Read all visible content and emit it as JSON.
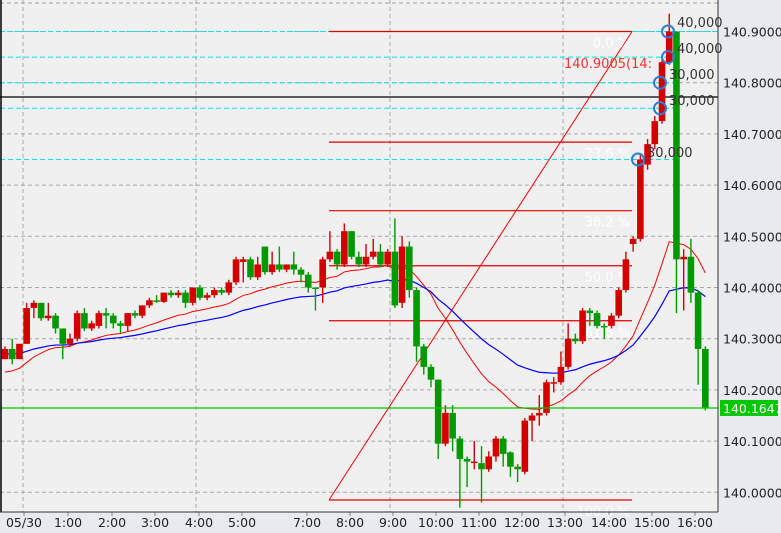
{
  "chart_data": {
    "type": "candlestick",
    "price_axis": {
      "ticks": [
        "140.0000",
        "140.1000",
        "140.2000",
        "140.3000",
        "140.4000",
        "140.5000",
        "140.6000",
        "140.7000",
        "140.8000",
        "140.9000"
      ],
      "ylim": [
        139.955,
        140.96
      ]
    },
    "time_axis": {
      "ticks": [
        "05/30",
        "1:00",
        "2:00",
        "3:00",
        "4:00",
        "5:00",
        "7:00",
        "8:00",
        "9:00",
        "10:00",
        "11:00",
        "12:00",
        "13:00",
        "14:00",
        "15:00",
        "16:00"
      ]
    },
    "colors": {
      "up": "#d40000",
      "down": "#009a00",
      "background": "#f0f0f0",
      "axis_background": "#e8eaf0",
      "ma_fast": "#ff0000",
      "ma_slow": "#0000ff",
      "order_line": "#00e5ee",
      "current_price": "#00c800"
    },
    "candles": [
      [
        140.26,
        140.285,
        140.26,
        140.28
      ],
      [
        140.28,
        140.3,
        140.25,
        140.26
      ],
      [
        140.26,
        140.29,
        140.26,
        140.29
      ],
      [
        140.29,
        140.37,
        140.29,
        140.36
      ],
      [
        140.36,
        140.375,
        140.34,
        140.37
      ],
      [
        140.37,
        140.37,
        140.335,
        140.34
      ],
      [
        140.34,
        140.37,
        140.335,
        140.345
      ],
      [
        140.345,
        140.35,
        140.31,
        140.32
      ],
      [
        140.32,
        140.32,
        140.26,
        140.29
      ],
      [
        140.29,
        140.31,
        140.285,
        140.3
      ],
      [
        140.3,
        140.355,
        140.295,
        140.35
      ],
      [
        140.35,
        140.36,
        140.315,
        140.32
      ],
      [
        140.32,
        140.335,
        140.315,
        140.33
      ],
      [
        140.325,
        140.355,
        140.32,
        140.35
      ],
      [
        140.35,
        140.36,
        140.32,
        140.345
      ],
      [
        140.345,
        140.35,
        140.32,
        140.33
      ],
      [
        140.33,
        140.335,
        140.31,
        140.325
      ],
      [
        140.325,
        140.35,
        140.315,
        140.35
      ],
      [
        140.35,
        140.355,
        140.34,
        140.345
      ],
      [
        140.345,
        140.365,
        140.34,
        140.365
      ],
      [
        140.365,
        140.38,
        140.36,
        140.375
      ],
      [
        140.375,
        140.385,
        140.37,
        140.372
      ],
      [
        140.372,
        140.39,
        140.37,
        140.39
      ],
      [
        140.39,
        140.395,
        140.38,
        140.385
      ],
      [
        140.385,
        140.395,
        140.38,
        140.39
      ],
      [
        140.39,
        140.395,
        140.36,
        140.37
      ],
      [
        140.37,
        140.4,
        140.365,
        140.4
      ],
      [
        140.4,
        140.405,
        140.375,
        140.38
      ],
      [
        140.38,
        140.39,
        140.375,
        140.385
      ],
      [
        140.385,
        140.4,
        140.38,
        140.395
      ],
      [
        140.395,
        140.4,
        140.385,
        140.39
      ],
      [
        140.39,
        140.415,
        140.385,
        140.41
      ],
      [
        140.41,
        140.46,
        140.405,
        140.455
      ],
      [
        140.45,
        140.46,
        140.41,
        140.455
      ],
      [
        140.455,
        140.46,
        140.415,
        140.42
      ],
      [
        140.42,
        140.46,
        140.415,
        140.445
      ],
      [
        140.48,
        140.48,
        140.425,
        140.43
      ],
      [
        140.43,
        140.47,
        140.425,
        140.445
      ],
      [
        140.445,
        140.48,
        140.43,
        140.435
      ],
      [
        140.435,
        140.445,
        140.43,
        140.445
      ],
      [
        140.445,
        140.47,
        140.425,
        140.435
      ],
      [
        140.435,
        140.44,
        140.41,
        140.425
      ],
      [
        140.425,
        140.43,
        140.39,
        140.4
      ],
      [
        140.4,
        140.4,
        140.355,
        140.398
      ],
      [
        140.4,
        140.46,
        140.37,
        140.455
      ],
      [
        140.455,
        140.51,
        140.45,
        140.47
      ],
      [
        140.47,
        140.475,
        140.435,
        140.445
      ],
      [
        140.445,
        140.525,
        140.44,
        140.51
      ],
      [
        140.51,
        140.51,
        140.455,
        140.46
      ],
      [
        140.46,
        140.47,
        140.44,
        140.445
      ],
      [
        140.445,
        140.485,
        140.44,
        140.46
      ],
      [
        140.46,
        140.495,
        140.455,
        140.47
      ],
      [
        140.47,
        140.485,
        140.44,
        140.445
      ],
      [
        140.445,
        140.475,
        140.44,
        140.47
      ],
      [
        140.47,
        140.535,
        140.36,
        140.365
      ],
      [
        140.37,
        140.5,
        140.36,
        140.48
      ],
      [
        140.48,
        140.49,
        140.38,
        140.395
      ],
      [
        140.395,
        140.4,
        140.255,
        140.285
      ],
      [
        140.285,
        140.29,
        140.23,
        140.245
      ],
      [
        140.245,
        140.25,
        140.205,
        140.22
      ],
      [
        140.22,
        140.22,
        140.065,
        140.095
      ],
      [
        140.095,
        140.17,
        140.09,
        140.155
      ],
      [
        140.155,
        140.17,
        140.08,
        140.105
      ],
      [
        140.105,
        140.11,
        139.97,
        140.065
      ],
      [
        140.065,
        140.07,
        140.01,
        140.06
      ],
      [
        140.06,
        140.1,
        140.045,
        140.06
      ],
      [
        140.057,
        140.09,
        139.98,
        140.045
      ],
      [
        140.045,
        140.08,
        140.04,
        140.07
      ],
      [
        140.07,
        140.11,
        140.06,
        140.105
      ],
      [
        140.105,
        140.11,
        140.05,
        140.075
      ],
      [
        140.078,
        140.08,
        140.03,
        140.05
      ],
      [
        140.05,
        140.055,
        140.02,
        140.045
      ],
      [
        140.04,
        140.145,
        140.035,
        140.14
      ],
      [
        140.14,
        140.155,
        140.1,
        140.15
      ],
      [
        140.15,
        140.19,
        140.13,
        140.155
      ],
      [
        140.155,
        140.22,
        140.15,
        140.215
      ],
      [
        140.215,
        140.225,
        140.195,
        140.215
      ],
      [
        140.215,
        140.275,
        140.21,
        140.245
      ],
      [
        140.245,
        140.33,
        140.24,
        140.3
      ],
      [
        140.3,
        140.31,
        140.29,
        140.295
      ],
      [
        140.295,
        140.36,
        140.29,
        140.355
      ],
      [
        140.355,
        140.36,
        140.325,
        140.35
      ],
      [
        140.35,
        140.355,
        140.32,
        140.325
      ],
      [
        140.325,
        140.33,
        140.3,
        140.323
      ],
      [
        140.325,
        140.35,
        140.32,
        140.345
      ],
      [
        140.345,
        140.4,
        140.34,
        140.395
      ],
      [
        140.395,
        140.47,
        140.39,
        140.455
      ],
      [
        140.485,
        140.5,
        140.47,
        140.495
      ],
      [
        140.495,
        140.66,
        140.49,
        140.65
      ],
      [
        140.64,
        140.69,
        140.63,
        140.68
      ],
      [
        140.68,
        140.735,
        140.67,
        140.725
      ],
      [
        140.725,
        140.845,
        140.72,
        140.84
      ],
      [
        140.84,
        140.935,
        140.835,
        140.9
      ],
      [
        140.9,
        140.9,
        140.35,
        140.455
      ],
      [
        140.455,
        140.475,
        140.355,
        140.46
      ],
      [
        140.46,
        140.495,
        140.37,
        140.39
      ],
      [
        140.39,
        140.395,
        140.21,
        140.28
      ],
      [
        140.28,
        140.285,
        140.16,
        140.165
      ]
    ],
    "fibonacci": {
      "low": 139.985,
      "high": 140.9,
      "levels": [
        {
          "label": "0.0 %",
          "price": 140.9
        },
        {
          "label": "23.6 %",
          "price": 140.684
        },
        {
          "label": "38.2 %",
          "price": 140.55
        },
        {
          "label": "50.0 %",
          "price": 140.4425
        },
        {
          "label": "61.8 %",
          "price": 140.335
        },
        {
          "label": "100.0 %",
          "price": 139.985
        }
      ]
    },
    "order_lines": [
      {
        "price": 140.9,
        "label": "40,000"
      },
      {
        "price": 140.85,
        "label": "40,000"
      },
      {
        "price": 140.8,
        "label": "30,000"
      },
      {
        "price": 140.75,
        "label": "30,000"
      },
      {
        "price": 140.65,
        "label": "30,000"
      }
    ],
    "high_annotation": "140.9005(14:",
    "horizontal_line_price": 140.772,
    "current_price": "140.1647"
  }
}
